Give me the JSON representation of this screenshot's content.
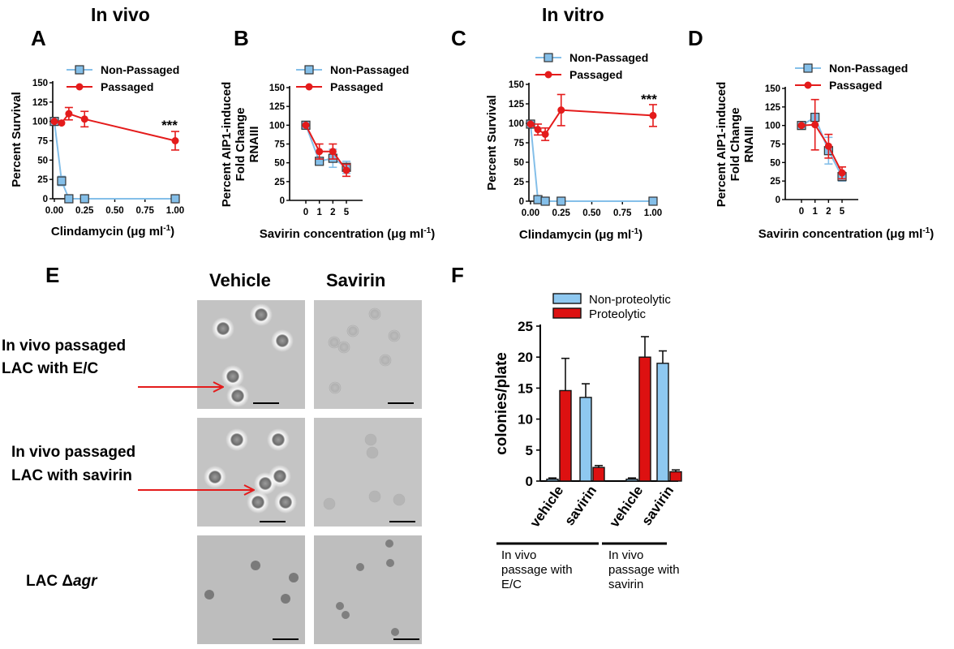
{
  "section_titles": {
    "in_vivo": "In vivo",
    "in_vitro": "In vitro"
  },
  "panel_letters": {
    "A": "A",
    "B": "B",
    "C": "C",
    "D": "D",
    "E": "E",
    "F": "F"
  },
  "colors": {
    "non_passaged": "#84bfe9",
    "passaged": "#e41b1b",
    "non_proteolytic": "#8ec8f0",
    "proteolytic": "#dd1111",
    "arrow": "#e41b1b"
  },
  "chart_data": [
    {
      "id": "A",
      "type": "line",
      "xlabel": "Clindamycin (μg ml⁻¹)",
      "ylabel": "Percent Survival",
      "xlim": [
        0,
        1.0
      ],
      "ylim": [
        0,
        150
      ],
      "xticks": [
        "0.00",
        "0.25",
        "0.50",
        "0.75",
        "1.00"
      ],
      "yticks": [
        "0",
        "25",
        "50",
        "75",
        "100",
        "125",
        "150"
      ],
      "annotation": "***",
      "series": [
        {
          "name": "Non-Passaged",
          "x": [
            0,
            0.06,
            0.12,
            0.25,
            1.0
          ],
          "y": [
            100,
            23,
            0,
            0,
            0
          ],
          "err": [
            0,
            6,
            0,
            0,
            0
          ]
        },
        {
          "name": "Passaged",
          "x": [
            0,
            0.06,
            0.12,
            0.25,
            1.0
          ],
          "y": [
            100,
            98,
            110,
            103,
            75
          ],
          "err": [
            0,
            0,
            8,
            10,
            12
          ]
        }
      ]
    },
    {
      "id": "B",
      "type": "line",
      "xlabel": "Savirin concentration (μg ml⁻¹)",
      "ylabel": "Percent AIP1-induced Fold Change RNAIII",
      "ylabel_lines": [
        "Percent AIP1-induced",
        "Fold Change",
        "RNAIII"
      ],
      "categories": [
        "0",
        "1",
        "2",
        "5"
      ],
      "ylim": [
        0,
        150
      ],
      "yticks": [
        "0",
        "25",
        "50",
        "75",
        "100",
        "125",
        "150"
      ],
      "series": [
        {
          "name": "Non-Passaged",
          "values": [
            100,
            52,
            56,
            44
          ],
          "err": [
            0,
            4,
            12,
            8
          ]
        },
        {
          "name": "Passaged",
          "values": [
            100,
            65,
            65,
            40
          ],
          "err": [
            0,
            10,
            10,
            8
          ]
        }
      ]
    },
    {
      "id": "C",
      "type": "line",
      "xlabel": "Clindamycin (μg ml⁻¹)",
      "ylabel": "Percent Survival",
      "xlim": [
        0,
        1.0
      ],
      "ylim": [
        0,
        150
      ],
      "xticks": [
        "0.00",
        "0.25",
        "0.50",
        "0.75",
        "1.00"
      ],
      "yticks": [
        "0",
        "25",
        "50",
        "75",
        "100",
        "125",
        "150"
      ],
      "annotation": "***",
      "series": [
        {
          "name": "Non-Passaged",
          "x": [
            0,
            0.06,
            0.12,
            0.25,
            1.0
          ],
          "y": [
            99,
            2,
            0,
            0,
            0
          ],
          "err": [
            0,
            0,
            0,
            0,
            0
          ]
        },
        {
          "name": "Passaged",
          "x": [
            0,
            0.06,
            0.12,
            0.25,
            1.0
          ],
          "y": [
            99,
            92,
            86,
            117,
            110
          ],
          "err": [
            0,
            7,
            8,
            20,
            14
          ]
        }
      ]
    },
    {
      "id": "D",
      "type": "line",
      "xlabel": "Savirin concentration (μg ml⁻¹)",
      "ylabel": "Percent AIP1-induced Fold Change RNAIII",
      "ylabel_lines": [
        "Percent AIP1-induced",
        "Fold Change",
        "RNAIII"
      ],
      "categories": [
        "0",
        "1",
        "2",
        "5"
      ],
      "ylim": [
        0,
        150
      ],
      "yticks": [
        "0",
        "25",
        "50",
        "75",
        "100",
        "125",
        "150"
      ],
      "series": [
        {
          "name": "Non-Passaged",
          "values": [
            100,
            111,
            66,
            31
          ],
          "err": [
            0,
            0,
            18,
            6
          ]
        },
        {
          "name": "Passaged",
          "values": [
            100,
            101,
            72,
            36
          ],
          "err": [
            0,
            34,
            16,
            8
          ]
        }
      ]
    },
    {
      "id": "F",
      "type": "bar",
      "ylabel": "colonies/plate",
      "ylim": [
        0,
        25
      ],
      "yticks": [
        "0",
        "5",
        "10",
        "15",
        "20",
        "25"
      ],
      "categories": [
        "vehicle",
        "savirin",
        "vehicle",
        "savirin"
      ],
      "groups": [
        {
          "label_lines": [
            "In vivo",
            "passage with",
            "E/C"
          ]
        },
        {
          "label_lines": [
            "In vivo",
            "passage with",
            "savirin"
          ]
        }
      ],
      "series": [
        {
          "name": "Non-proteolytic",
          "values": [
            0.3,
            13.5,
            0.3,
            19
          ],
          "err": [
            0.2,
            2.2,
            0.2,
            2
          ]
        },
        {
          "name": "Proteolytic",
          "values": [
            14.6,
            2.2,
            20,
            1.5
          ],
          "err": [
            5.2,
            0.3,
            3.3,
            0.3
          ]
        }
      ]
    }
  ],
  "panel_e": {
    "columns": [
      "Vehicle",
      "Savirin"
    ],
    "row_labels": [
      [
        "In vivo passaged",
        "LAC with E/C"
      ],
      [
        "In vivo passaged",
        "LAC with savirin"
      ],
      [
        "LAC Δ",
        "agr"
      ]
    ]
  }
}
